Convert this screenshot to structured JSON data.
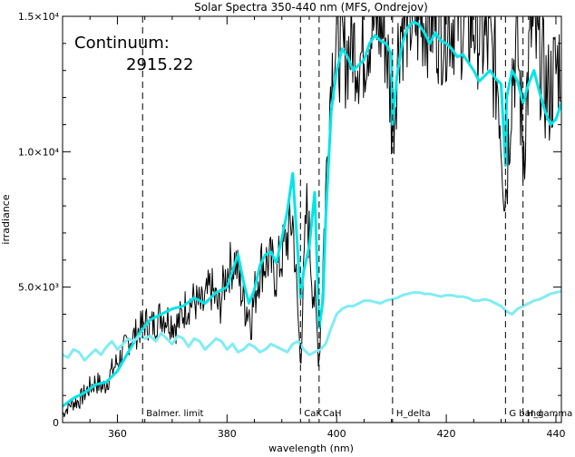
{
  "chart_data": {
    "type": "line",
    "title": "Solar Spectra 350-440 nm (MFS, Ondrejov)",
    "xlabel": "wavelength (nm)",
    "ylabel": "irradiance",
    "xlim": [
      350,
      441
    ],
    "ylim": [
      0,
      15000
    ],
    "x_ticks": [
      {
        "value": 360,
        "label": "360"
      },
      {
        "value": 380,
        "label": "380"
      },
      {
        "value": 400,
        "label": "400"
      },
      {
        "value": 420,
        "label": "420"
      },
      {
        "value": 440,
        "label": "440"
      }
    ],
    "y_ticks": [
      {
        "value": 0,
        "label": "0"
      },
      {
        "value": 5000,
        "label": "5.0×10³"
      },
      {
        "value": 10000,
        "label": "1.0×10⁴"
      },
      {
        "value": 15000,
        "label": "1.5×10⁴"
      }
    ],
    "annotation": {
      "label": "Continuum:",
      "value": "2915.22"
    },
    "reference_lines": [
      {
        "x": 364.6,
        "label": "Balmer. limit"
      },
      {
        "x": 393.4,
        "label": "CaK"
      },
      {
        "x": 396.8,
        "label": "CaH"
      },
      {
        "x": 410.2,
        "label": "H_delta"
      },
      {
        "x": 430.8,
        "label": "G band"
      },
      {
        "x": 434.0,
        "label": "H_gamma"
      }
    ],
    "series": [
      {
        "color": "#000000",
        "width": 1,
        "x": [
          350,
          351.5,
          353,
          354.5,
          356,
          357.5,
          359,
          360.5,
          362,
          363.5,
          365,
          366.5,
          368,
          369.5,
          371,
          372.5,
          374,
          375.5,
          377,
          378.5,
          380,
          381.5,
          383,
          384.5,
          386,
          387.5,
          389,
          390.5,
          392,
          393.4,
          394.5,
          395.5,
          396.8,
          398,
          399,
          400,
          401.5,
          403,
          404.5,
          406,
          407.5,
          409,
          410.2,
          411.5,
          413,
          414.5,
          416,
          417.5,
          419,
          420.5,
          422,
          423.5,
          425,
          426.5,
          428,
          429.5,
          430.8,
          432,
          433,
          434,
          435.5,
          437,
          438.5,
          440,
          441
        ],
        "values": [
          300,
          700,
          800,
          1200,
          1500,
          1300,
          1900,
          2400,
          3000,
          3300,
          3700,
          3600,
          4000,
          3800,
          3600,
          4300,
          4500,
          4200,
          5000,
          4200,
          5600,
          6000,
          4500,
          4000,
          5800,
          6000,
          5500,
          6500,
          7500,
          2200,
          8000,
          5600,
          2400,
          8500,
          13000,
          14000,
          13500,
          14000,
          13500,
          14500,
          14800,
          14200,
          11000,
          14600,
          15000,
          14800,
          15000,
          14800,
          14600,
          14800,
          15000,
          14600,
          14800,
          14200,
          13800,
          12500,
          8500,
          13000,
          14000,
          10000,
          14500,
          13500,
          12000,
          13000,
          13500
        ],
        "noise": [
          200,
          300,
          350,
          400,
          450,
          450,
          500,
          550,
          550,
          600,
          650,
          650,
          700,
          700,
          750,
          800,
          800,
          850,
          900,
          900,
          950,
          1000,
          1000,
          1050,
          1100,
          1100,
          1150,
          1200,
          1200,
          600,
          1300,
          1300,
          700,
          1500,
          1800,
          2000,
          2000,
          2000,
          2200,
          2000,
          2200,
          2200,
          2000,
          2200,
          2200,
          2200,
          2200,
          2200,
          2200,
          2200,
          2200,
          2200,
          2200,
          2200,
          2200,
          2200,
          2200,
          2200,
          2200,
          2200,
          2200,
          2200,
          2200,
          2200,
          2200
        ]
      },
      {
        "color": "#00e5e8",
        "width": 3,
        "x": [
          350,
          352,
          354,
          356,
          358,
          360,
          362,
          364,
          366,
          368,
          370,
          372,
          374,
          376,
          378,
          380,
          381,
          382,
          383,
          384,
          385,
          386,
          387,
          388,
          389,
          390,
          391,
          392,
          393,
          393.4,
          394,
          395,
          396,
          396.8,
          397.5,
          398,
          399,
          400,
          401,
          402,
          403,
          404,
          405,
          406,
          407,
          408,
          409,
          410,
          410.2,
          411,
          412,
          413,
          414,
          415,
          416,
          417,
          418,
          419,
          420,
          421,
          422,
          423,
          424,
          425,
          426,
          427,
          428,
          429,
          430,
          430.8,
          431,
          432,
          433,
          434,
          435,
          436,
          437,
          438,
          439,
          440,
          441
        ],
        "values": [
          600,
          900,
          1100,
          1400,
          1500,
          1900,
          2600,
          3300,
          3800,
          4000,
          4200,
          4300,
          4600,
          4400,
          4800,
          5000,
          5600,
          6200,
          5200,
          4400,
          4900,
          5800,
          6200,
          6300,
          5900,
          6800,
          7800,
          9200,
          6000,
          4600,
          5600,
          6500,
          8500,
          3500,
          4500,
          7500,
          11500,
          13000,
          13800,
          13500,
          13000,
          13200,
          13400,
          14000,
          14300,
          14100,
          14000,
          13600,
          11000,
          12800,
          14000,
          14600,
          14800,
          14700,
          14400,
          14000,
          14400,
          14100,
          14000,
          13800,
          13500,
          13600,
          13300,
          13000,
          12600,
          12800,
          13000,
          12700,
          12500,
          9500,
          12000,
          13000,
          12600,
          11800,
          12500,
          13000,
          12200,
          11500,
          11000,
          11200,
          11800
        ]
      },
      {
        "color": "#80ecf2",
        "width": 3,
        "x": [
          350,
          351,
          352,
          353,
          354,
          355,
          356,
          357,
          358,
          359,
          360,
          361,
          362,
          363,
          364,
          365,
          366,
          367,
          368,
          369,
          370,
          371,
          372,
          373,
          374,
          375,
          376,
          377,
          378,
          379,
          380,
          381,
          382,
          383,
          384,
          385,
          386,
          387,
          388,
          389,
          390,
          391,
          392,
          393,
          394,
          395,
          396,
          397,
          398,
          399,
          400,
          401,
          402,
          403,
          404,
          405,
          406,
          407,
          408,
          409,
          410,
          411,
          412,
          413,
          414,
          415,
          416,
          417,
          418,
          419,
          420,
          421,
          422,
          423,
          424,
          425,
          426,
          427,
          428,
          429,
          430,
          431,
          432,
          433,
          434,
          435,
          436,
          437,
          438,
          439,
          440,
          441
        ],
        "values": [
          2500,
          2400,
          2700,
          2600,
          2300,
          2500,
          2700,
          2500,
          2800,
          3000,
          2700,
          2900,
          3100,
          3000,
          3200,
          3100,
          3200,
          3000,
          3300,
          3100,
          2900,
          3200,
          3100,
          2800,
          3100,
          3000,
          2700,
          2900,
          3100,
          3000,
          2700,
          2900,
          2600,
          2700,
          2900,
          2800,
          2600,
          2700,
          2900,
          2800,
          2700,
          2600,
          2900,
          3000,
          2700,
          2500,
          2600,
          2700,
          2900,
          3500,
          4000,
          4200,
          4300,
          4300,
          4400,
          4500,
          4500,
          4450,
          4400,
          4500,
          4550,
          4600,
          4700,
          4750,
          4800,
          4800,
          4750,
          4750,
          4700,
          4650,
          4700,
          4700,
          4650,
          4650,
          4600,
          4500,
          4500,
          4550,
          4500,
          4400,
          4300,
          4100,
          4000,
          4200,
          4300,
          4400,
          4500,
          4550,
          4650,
          4750,
          4800,
          4850
        ]
      }
    ]
  }
}
